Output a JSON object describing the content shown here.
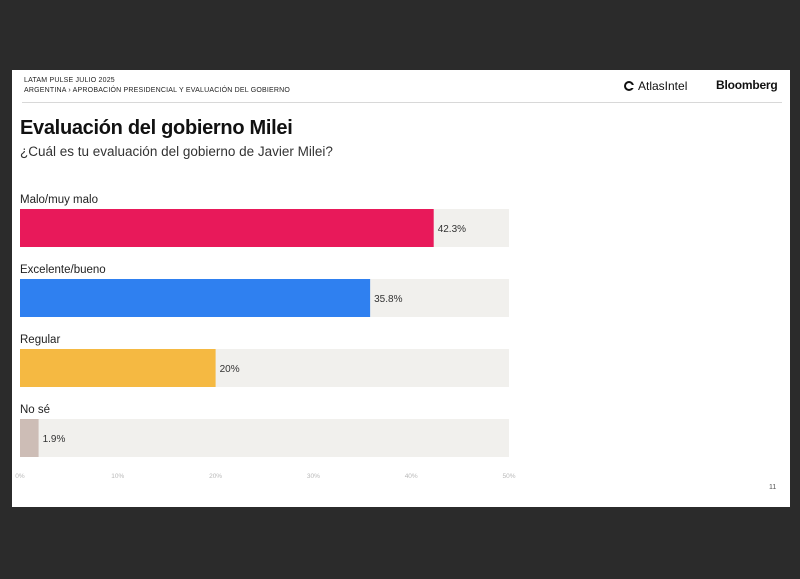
{
  "header": {
    "line1": "LATAM PULSE JULIO 2025",
    "line2": "ARGENTINA › APROBACIÓN PRESIDENCIAL Y EVALUACIÓN DEL GOBIERNO",
    "brand_left": "AtlasIntel",
    "brand_right": "Bloomberg",
    "brand_left_icon": "atlas-ring-icon"
  },
  "page_number": "11",
  "chart_data": {
    "type": "bar",
    "orientation": "horizontal",
    "title": "Evaluación del gobierno Milei",
    "subtitle": "¿Cuál es tu evaluación del gobierno de Javier Milei?",
    "categories": [
      "Malo/muy malo",
      "Excelente/bueno",
      "Regular",
      "No sé"
    ],
    "values": [
      42.3,
      35.8,
      20,
      1.9
    ],
    "value_labels": [
      "42.3%",
      "35.8%",
      "20%",
      "1.9%"
    ],
    "colors": [
      "#e8195a",
      "#2f80f0",
      "#f5b942",
      "#cdbdb6"
    ],
    "track_color": "#f1f0ed",
    "xlim": [
      0,
      50
    ],
    "xticks": [
      0,
      10,
      20,
      30,
      40,
      50
    ],
    "xtick_labels": [
      "0%",
      "10%",
      "20%",
      "30%",
      "40%",
      "50%"
    ],
    "grid": false,
    "legend": "none"
  }
}
